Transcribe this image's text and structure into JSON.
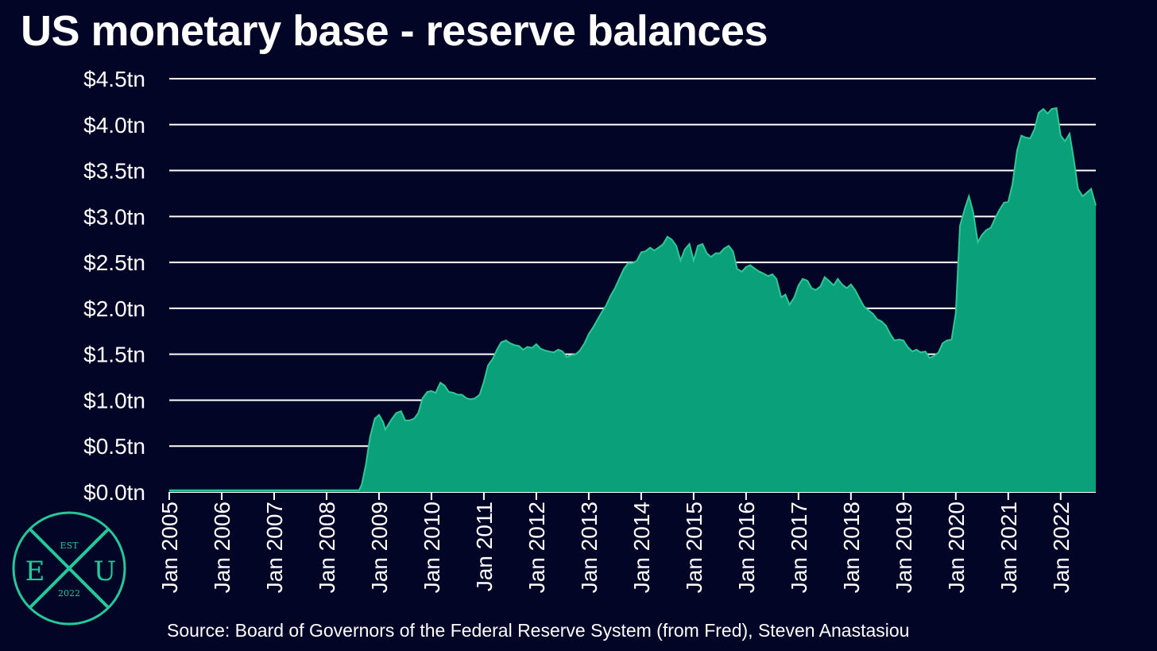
{
  "title": "US monetary base - reserve balances",
  "source": "Source: Board of Governors of the Federal Reserve System (from Fred), Steven Anastasiou",
  "logo": {
    "top": "EST",
    "left": "E",
    "right": "U",
    "bottom": "2022"
  },
  "colors": {
    "background": "#030527",
    "area": "#0aa07a",
    "area_line": "#2ec896",
    "grid": "#ffffff",
    "logo": "#22c99a"
  },
  "chart_data": {
    "type": "area",
    "title": "US monetary base - reserve balances",
    "xlabel": "",
    "ylabel": "",
    "ylim": [
      0,
      4.5
    ],
    "xlim": [
      "2005-01",
      "2022-08"
    ],
    "grid": "horizontal",
    "ytick_labels": [
      "$0.0tn",
      "$0.5tn",
      "$1.0tn",
      "$1.5tn",
      "$2.0tn",
      "$2.5tn",
      "$3.0tn",
      "$3.5tn",
      "$4.0tn",
      "$4.5tn"
    ],
    "ytick_values": [
      0,
      0.5,
      1.0,
      1.5,
      2.0,
      2.5,
      3.0,
      3.5,
      4.0,
      4.5
    ],
    "xtick_labels": [
      "Jan 2005",
      "Jan 2006",
      "Jan 2007",
      "Jan 2008",
      "Jan 2009",
      "Jan 2010",
      "Jan 2011",
      "Jan 2012",
      "Jan 2013",
      "Jan 2014",
      "Jan 2015",
      "Jan 2016",
      "Jan 2017",
      "Jan 2018",
      "Jan 2019",
      "Jan 2020",
      "Jan 2021",
      "Jan 2022"
    ],
    "xtick_values": [
      2005,
      2006,
      2007,
      2008,
      2009,
      2010,
      2011,
      2012,
      2013,
      2014,
      2015,
      2016,
      2017,
      2018,
      2019,
      2020,
      2021,
      2022
    ],
    "series": [
      {
        "unit": "trillion USD",
        "points": [
          [
            2005.0,
            0.02
          ],
          [
            2008.5,
            0.02
          ],
          [
            2008.62,
            0.02
          ],
          [
            2008.67,
            0.08
          ],
          [
            2008.75,
            0.3
          ],
          [
            2008.83,
            0.6
          ],
          [
            2008.92,
            0.8
          ],
          [
            2009.0,
            0.84
          ],
          [
            2009.08,
            0.76
          ],
          [
            2009.12,
            0.68
          ],
          [
            2009.25,
            0.8
          ],
          [
            2009.33,
            0.86
          ],
          [
            2009.42,
            0.88
          ],
          [
            2009.5,
            0.78
          ],
          [
            2009.58,
            0.78
          ],
          [
            2009.67,
            0.8
          ],
          [
            2009.75,
            0.86
          ],
          [
            2009.83,
            1.02
          ],
          [
            2009.92,
            1.09
          ],
          [
            2010.0,
            1.1
          ],
          [
            2010.08,
            1.08
          ],
          [
            2010.17,
            1.19
          ],
          [
            2010.25,
            1.16
          ],
          [
            2010.33,
            1.09
          ],
          [
            2010.42,
            1.08
          ],
          [
            2010.5,
            1.06
          ],
          [
            2010.58,
            1.06
          ],
          [
            2010.67,
            1.02
          ],
          [
            2010.75,
            1.01
          ],
          [
            2010.83,
            1.02
          ],
          [
            2010.92,
            1.06
          ],
          [
            2011.0,
            1.2
          ],
          [
            2011.08,
            1.38
          ],
          [
            2011.17,
            1.45
          ],
          [
            2011.25,
            1.55
          ],
          [
            2011.33,
            1.63
          ],
          [
            2011.42,
            1.65
          ],
          [
            2011.5,
            1.62
          ],
          [
            2011.58,
            1.6
          ],
          [
            2011.67,
            1.59
          ],
          [
            2011.75,
            1.55
          ],
          [
            2011.83,
            1.58
          ],
          [
            2011.92,
            1.57
          ],
          [
            2012.0,
            1.61
          ],
          [
            2012.08,
            1.56
          ],
          [
            2012.17,
            1.54
          ],
          [
            2012.25,
            1.53
          ],
          [
            2012.33,
            1.52
          ],
          [
            2012.42,
            1.55
          ],
          [
            2012.5,
            1.53
          ],
          [
            2012.58,
            1.47
          ],
          [
            2012.67,
            1.49
          ],
          [
            2012.75,
            1.5
          ],
          [
            2012.83,
            1.54
          ],
          [
            2012.92,
            1.62
          ],
          [
            2013.0,
            1.72
          ],
          [
            2013.08,
            1.79
          ],
          [
            2013.17,
            1.88
          ],
          [
            2013.25,
            1.96
          ],
          [
            2013.33,
            2.03
          ],
          [
            2013.42,
            2.14
          ],
          [
            2013.5,
            2.22
          ],
          [
            2013.58,
            2.32
          ],
          [
            2013.67,
            2.43
          ],
          [
            2013.75,
            2.49
          ],
          [
            2013.83,
            2.49
          ],
          [
            2013.92,
            2.52
          ],
          [
            2014.0,
            2.61
          ],
          [
            2014.08,
            2.62
          ],
          [
            2014.17,
            2.66
          ],
          [
            2014.25,
            2.63
          ],
          [
            2014.33,
            2.66
          ],
          [
            2014.42,
            2.7
          ],
          [
            2014.5,
            2.78
          ],
          [
            2014.58,
            2.75
          ],
          [
            2014.67,
            2.68
          ],
          [
            2014.75,
            2.52
          ],
          [
            2014.83,
            2.64
          ],
          [
            2014.92,
            2.7
          ],
          [
            2015.0,
            2.52
          ],
          [
            2015.08,
            2.68
          ],
          [
            2015.17,
            2.7
          ],
          [
            2015.25,
            2.6
          ],
          [
            2015.33,
            2.56
          ],
          [
            2015.42,
            2.6
          ],
          [
            2015.5,
            2.6
          ],
          [
            2015.58,
            2.65
          ],
          [
            2015.67,
            2.68
          ],
          [
            2015.75,
            2.62
          ],
          [
            2015.83,
            2.43
          ],
          [
            2015.92,
            2.4
          ],
          [
            2016.0,
            2.45
          ],
          [
            2016.08,
            2.47
          ],
          [
            2016.17,
            2.43
          ],
          [
            2016.25,
            2.4
          ],
          [
            2016.33,
            2.38
          ],
          [
            2016.42,
            2.35
          ],
          [
            2016.5,
            2.37
          ],
          [
            2016.58,
            2.32
          ],
          [
            2016.67,
            2.12
          ],
          [
            2016.75,
            2.15
          ],
          [
            2016.83,
            2.04
          ],
          [
            2016.92,
            2.12
          ],
          [
            2017.0,
            2.25
          ],
          [
            2017.08,
            2.32
          ],
          [
            2017.17,
            2.3
          ],
          [
            2017.25,
            2.22
          ],
          [
            2017.33,
            2.2
          ],
          [
            2017.42,
            2.24
          ],
          [
            2017.5,
            2.34
          ],
          [
            2017.58,
            2.3
          ],
          [
            2017.67,
            2.25
          ],
          [
            2017.75,
            2.32
          ],
          [
            2017.83,
            2.26
          ],
          [
            2017.92,
            2.22
          ],
          [
            2018.0,
            2.26
          ],
          [
            2018.08,
            2.2
          ],
          [
            2018.17,
            2.1
          ],
          [
            2018.25,
            2.02
          ],
          [
            2018.33,
            1.98
          ],
          [
            2018.42,
            1.94
          ],
          [
            2018.5,
            1.88
          ],
          [
            2018.58,
            1.86
          ],
          [
            2018.67,
            1.81
          ],
          [
            2018.75,
            1.72
          ],
          [
            2018.83,
            1.65
          ],
          [
            2018.92,
            1.66
          ],
          [
            2019.0,
            1.65
          ],
          [
            2019.08,
            1.58
          ],
          [
            2019.17,
            1.53
          ],
          [
            2019.25,
            1.55
          ],
          [
            2019.33,
            1.52
          ],
          [
            2019.42,
            1.53
          ],
          [
            2019.5,
            1.46
          ],
          [
            2019.58,
            1.48
          ],
          [
            2019.67,
            1.52
          ],
          [
            2019.75,
            1.62
          ],
          [
            2019.83,
            1.65
          ],
          [
            2019.92,
            1.66
          ],
          [
            2020.0,
            1.95
          ],
          [
            2020.08,
            2.9
          ],
          [
            2020.17,
            3.08
          ],
          [
            2020.25,
            3.22
          ],
          [
            2020.33,
            3.05
          ],
          [
            2020.42,
            2.72
          ],
          [
            2020.5,
            2.8
          ],
          [
            2020.58,
            2.85
          ],
          [
            2020.67,
            2.88
          ],
          [
            2020.75,
            2.98
          ],
          [
            2020.83,
            3.07
          ],
          [
            2020.92,
            3.15
          ],
          [
            2021.0,
            3.16
          ],
          [
            2021.08,
            3.35
          ],
          [
            2021.17,
            3.72
          ],
          [
            2021.25,
            3.88
          ],
          [
            2021.33,
            3.86
          ],
          [
            2021.42,
            3.85
          ],
          [
            2021.5,
            3.95
          ],
          [
            2021.58,
            4.13
          ],
          [
            2021.67,
            4.17
          ],
          [
            2021.75,
            4.12
          ],
          [
            2021.83,
            4.17
          ],
          [
            2021.92,
            4.18
          ],
          [
            2022.0,
            3.88
          ],
          [
            2022.08,
            3.82
          ],
          [
            2022.17,
            3.9
          ],
          [
            2022.25,
            3.62
          ],
          [
            2022.33,
            3.3
          ],
          [
            2022.42,
            3.22
          ],
          [
            2022.5,
            3.26
          ],
          [
            2022.58,
            3.3
          ],
          [
            2022.67,
            3.12
          ]
        ]
      }
    ]
  }
}
